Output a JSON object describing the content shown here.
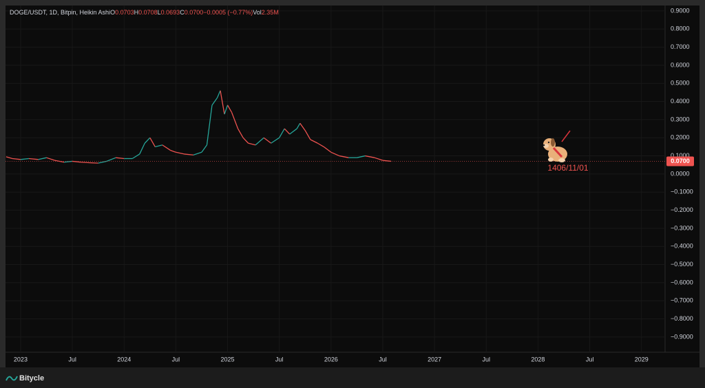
{
  "chart_data": {
    "type": "line",
    "header": {
      "title": "DOGE/USDT, 1D, Bitpin, Heikin Ashi",
      "fields": [
        {
          "key": "O",
          "value": "0.0703"
        },
        {
          "key": "H",
          "value": "0.0708"
        },
        {
          "key": "L",
          "value": "0.0693"
        },
        {
          "key": "C",
          "value": "0.0700"
        }
      ],
      "change": "−0.0005 (−0.77%)",
      "volume_key": "Vol",
      "volume": "2.35M"
    },
    "x": [
      2022.86,
      2022.92,
      2023.0,
      2023.08,
      2023.17,
      2023.25,
      2023.33,
      2023.42,
      2023.5,
      2023.58,
      2023.67,
      2023.75,
      2023.83,
      2023.92,
      2024.0,
      2024.08,
      2024.15,
      2024.2,
      2024.25,
      2024.3,
      2024.37,
      2024.45,
      2024.5,
      2024.58,
      2024.67,
      2024.75,
      2024.8,
      2024.85,
      2024.9,
      2024.93,
      2024.97,
      2025.0,
      2025.04,
      2025.1,
      2025.15,
      2025.2,
      2025.27,
      2025.35,
      2025.42,
      2025.5,
      2025.55,
      2025.6,
      2025.67,
      2025.7,
      2025.75,
      2025.8,
      2025.87,
      2025.93,
      2026.0,
      2026.08,
      2026.17,
      2026.25,
      2026.33,
      2026.42,
      2026.5,
      2026.58
    ],
    "series": [
      {
        "name": "DOGE/USDT",
        "values": [
          0.095,
          0.085,
          0.08,
          0.085,
          0.08,
          0.09,
          0.075,
          0.065,
          0.07,
          0.065,
          0.062,
          0.06,
          0.07,
          0.09,
          0.085,
          0.085,
          0.11,
          0.17,
          0.2,
          0.15,
          0.16,
          0.13,
          0.12,
          0.11,
          0.105,
          0.12,
          0.16,
          0.38,
          0.42,
          0.46,
          0.33,
          0.38,
          0.34,
          0.25,
          0.2,
          0.17,
          0.16,
          0.2,
          0.17,
          0.2,
          0.25,
          0.22,
          0.25,
          0.28,
          0.24,
          0.19,
          0.17,
          0.15,
          0.12,
          0.1,
          0.09,
          0.09,
          0.1,
          0.09,
          0.075,
          0.07
        ]
      }
    ],
    "up_color": "#26a69a",
    "down_color": "#ef5350",
    "xlim": [
      2022.854,
      2029.228
    ],
    "xticks": [
      2023,
      {
        "value": 2023.5,
        "label": "Jul"
      },
      2024,
      {
        "value": 2024.5,
        "label": "Jul"
      },
      2025,
      {
        "value": 2025.5,
        "label": "Jul"
      },
      2026,
      {
        "value": 2026.5,
        "label": "Jul"
      },
      2027,
      {
        "value": 2027.5,
        "label": "Jul"
      },
      2028,
      {
        "value": 2028.5,
        "label": "Jul"
      },
      2029
    ],
    "ylim": [
      -0.984,
      0.93
    ],
    "yticks": [
      {
        "value": 0.9,
        "label": "0.9000"
      },
      {
        "value": 0.8,
        "label": "0.8000"
      },
      {
        "value": 0.7,
        "label": "0.7000"
      },
      {
        "value": 0.6,
        "label": "0.6000"
      },
      {
        "value": 0.5,
        "label": "0.5000"
      },
      {
        "value": 0.4,
        "label": "0.4000"
      },
      {
        "value": 0.3,
        "label": "0.3000"
      },
      {
        "value": 0.2,
        "label": "0.2000"
      },
      {
        "value": 0.1,
        "label": "0.1000"
      },
      {
        "value": 0,
        "label": "0.0000"
      },
      {
        "value": -0.1,
        "label": "−0.1000"
      },
      {
        "value": -0.2,
        "label": "−0.2000"
      },
      {
        "value": -0.3,
        "label": "−0.3000"
      },
      {
        "value": -0.4,
        "label": "−0.4000"
      },
      {
        "value": -0.5,
        "label": "−0.5000"
      },
      {
        "value": -0.6,
        "label": "−0.6000"
      },
      {
        "value": -0.7,
        "label": "−0.7000"
      },
      {
        "value": -0.8,
        "label": "−0.8000"
      },
      {
        "value": -0.9,
        "label": "−0.9000"
      }
    ],
    "last_price": {
      "value": 0.07,
      "label": "0.0700"
    },
    "annotation": "1406/11/01",
    "brand": "Bitycle",
    "grid": true
  }
}
